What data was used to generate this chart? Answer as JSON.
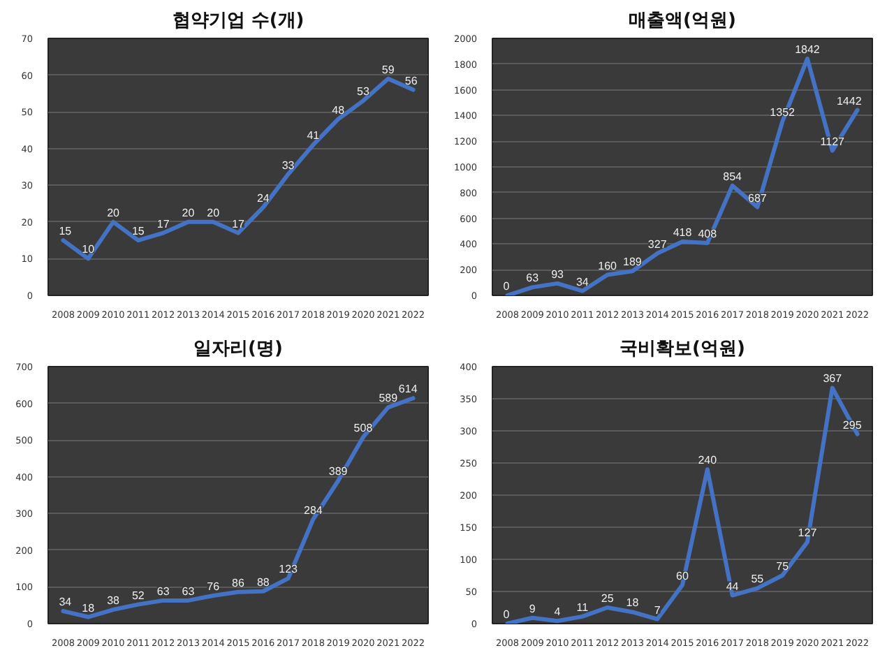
{
  "chart_data": [
    {
      "type": "line",
      "title": "협약기업 수(개)",
      "categories": [
        "2008",
        "2009",
        "2010",
        "2011",
        "2012",
        "2013",
        "2014",
        "2015",
        "2016",
        "2017",
        "2018",
        "2019",
        "2020",
        "2021",
        "2022"
      ],
      "values": [
        15,
        10,
        20,
        15,
        17,
        20,
        20,
        17,
        24,
        33,
        41,
        48,
        53,
        59,
        56
      ],
      "color": "#4472c4",
      "ylim": [
        0,
        70
      ],
      "yticks": [
        0,
        10,
        20,
        30,
        40,
        50,
        60,
        70
      ],
      "grid": "y",
      "data_labels": true
    },
    {
      "type": "line",
      "title": "매출액(억원)",
      "categories": [
        "2008",
        "2009",
        "2010",
        "2011",
        "2012",
        "2013",
        "2014",
        "2015",
        "2016",
        "2017",
        "2018",
        "2019",
        "2020",
        "2021",
        "2022"
      ],
      "values": [
        0,
        63,
        93,
        34,
        160,
        189,
        327,
        418,
        408,
        854,
        687,
        1352,
        1842,
        1127,
        1442
      ],
      "color": "#4472c4",
      "ylim": [
        0,
        2000
      ],
      "yticks": [
        0,
        200,
        400,
        600,
        800,
        1000,
        1200,
        1400,
        1600,
        1800,
        2000
      ],
      "grid": "y",
      "data_labels": true
    },
    {
      "type": "line",
      "title": "일자리(명)",
      "categories": [
        "2008",
        "2009",
        "2010",
        "2011",
        "2012",
        "2013",
        "2014",
        "2015",
        "2016",
        "2017",
        "2018",
        "2019",
        "2020",
        "2021",
        "2022"
      ],
      "values": [
        34,
        18,
        38,
        52,
        63,
        63,
        76,
        86,
        88,
        123,
        284,
        389,
        508,
        589,
        614
      ],
      "color": "#4472c4",
      "ylim": [
        0,
        700
      ],
      "yticks": [
        0,
        100,
        200,
        300,
        400,
        500,
        600,
        700
      ],
      "grid": "y",
      "data_labels": true
    },
    {
      "type": "line",
      "title": "국비확보(억원)",
      "categories": [
        "2008",
        "2009",
        "2010",
        "2011",
        "2012",
        "2013",
        "2014",
        "2015",
        "2016",
        "2017",
        "2018",
        "2019",
        "2020",
        "2021",
        "2022"
      ],
      "values": [
        0,
        9,
        4,
        11,
        25,
        18,
        7,
        60,
        240,
        44,
        55,
        75,
        127,
        367,
        295
      ],
      "color": "#4472c4",
      "ylim": [
        0,
        400
      ],
      "yticks": [
        0,
        50,
        100,
        150,
        200,
        250,
        300,
        350,
        400
      ],
      "grid": "y",
      "data_labels": true
    }
  ]
}
